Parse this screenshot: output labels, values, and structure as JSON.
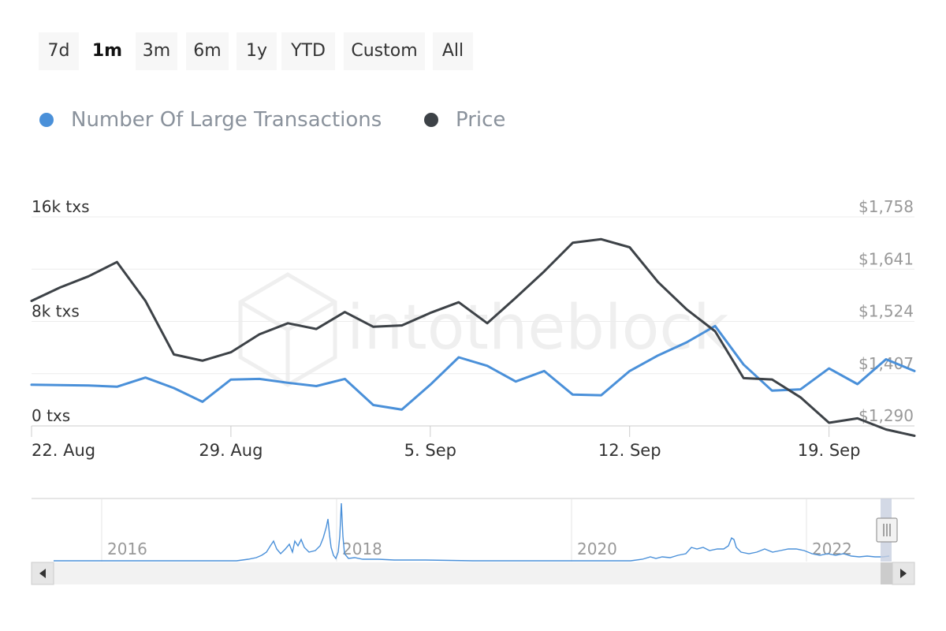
{
  "range_selector": {
    "buttons": [
      {
        "label": "7d",
        "active": false
      },
      {
        "label": "1m",
        "active": true
      },
      {
        "label": "3m",
        "active": false
      },
      {
        "label": "6m",
        "active": false
      },
      {
        "label": "1y",
        "active": false
      },
      {
        "label": "YTD",
        "active": false
      },
      {
        "label": "Custom",
        "active": false
      },
      {
        "label": "All",
        "active": false
      }
    ]
  },
  "watermark": "intotheblock",
  "chart_data": {
    "type": "line",
    "title": "",
    "legend_position": "top-left",
    "grid": true,
    "x_tick_labels": [
      "22. Aug",
      "29. Aug",
      "5. Sep",
      "12. Sep",
      "19. Sep"
    ],
    "x_range_days": [
      0,
      31
    ],
    "x_tick_days": [
      0,
      7,
      14,
      21,
      28
    ],
    "y_left": {
      "tick_labels": [
        "0 txs",
        "8k txs",
        "16k txs"
      ],
      "tick_values": [
        0,
        8000,
        16000
      ],
      "range": [
        0,
        16000
      ]
    },
    "y_right": {
      "tick_labels": [
        "$1,290",
        "$1,407",
        "$1,524",
        "$1,641",
        "$1,758"
      ],
      "tick_values": [
        1290,
        1407,
        1524,
        1641,
        1758
      ],
      "range": [
        1290,
        1758
      ]
    },
    "series": [
      {
        "name": "Number Of Large Transactions",
        "color": "#4a90d9",
        "axis": "left",
        "x": [
          0,
          1,
          2,
          3,
          4,
          5,
          6,
          7,
          8,
          9,
          10,
          11,
          12,
          13,
          14,
          15,
          16,
          17,
          18,
          19,
          20,
          21,
          22,
          23,
          24,
          25,
          26,
          27,
          28,
          29,
          30,
          31
        ],
        "values": [
          3150,
          3130,
          3100,
          3000,
          3700,
          2900,
          1850,
          3550,
          3600,
          3300,
          3050,
          3600,
          1600,
          1250,
          3150,
          5250,
          4600,
          3400,
          4200,
          2400,
          2350,
          4200,
          5400,
          6400,
          7650,
          4700,
          2700,
          2800,
          4400,
          3200,
          5100,
          4200
        ]
      },
      {
        "name": "Price",
        "color": "#3d4247",
        "axis": "right",
        "x": [
          0,
          1,
          2,
          3,
          4,
          5,
          6,
          7,
          8,
          9,
          10,
          11,
          12,
          13,
          14,
          15,
          16,
          17,
          18,
          19,
          20,
          21,
          22,
          23,
          24,
          25,
          26,
          27,
          28,
          29,
          30,
          31
        ],
        "values": [
          1570,
          1600,
          1625,
          1657,
          1570,
          1450,
          1436,
          1455,
          1495,
          1520,
          1507,
          1545,
          1512,
          1515,
          1543,
          1567,
          1520,
          1577,
          1636,
          1700,
          1708,
          1690,
          1612,
          1551,
          1502,
          1397,
          1394,
          1354,
          1297,
          1307,
          1282,
          1268
        ]
      }
    ]
  },
  "navigator": {
    "year_labels": [
      "2016",
      "2018",
      "2020",
      "2022"
    ],
    "left_arrow_icon": "triangle-left-icon",
    "right_arrow_icon": "triangle-right-icon",
    "handle_icon": "grip-lines-icon"
  }
}
